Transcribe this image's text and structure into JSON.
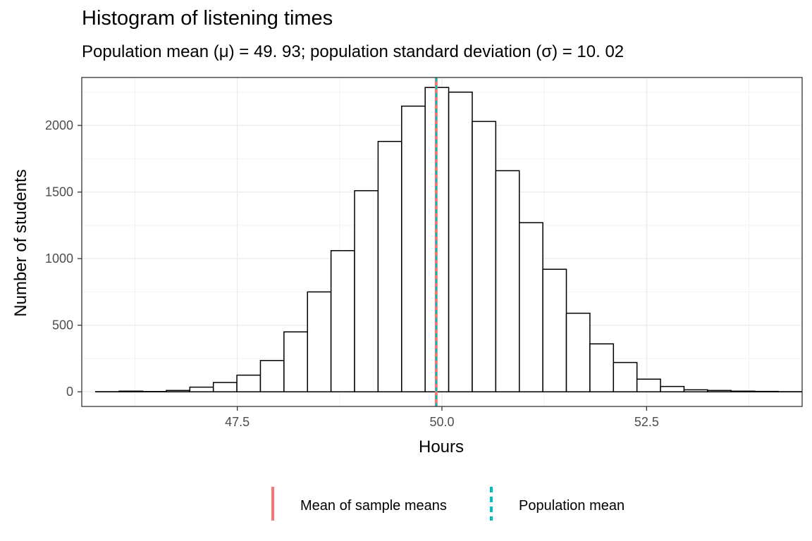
{
  "chart_data": {
    "type": "bar",
    "title": "Histogram of listening times",
    "subtitle": "Population mean (μ) = 49. 93; population standard deviation (σ) = 10. 02",
    "xlabel": "Hours",
    "ylabel": "Number of students",
    "xlim": [
      45.6,
      54.4
    ],
    "ylim": [
      -110,
      2360
    ],
    "xticks": [
      47.5,
      50.0,
      52.5
    ],
    "xtick_labels": [
      "47.5",
      "50.0",
      "52.5"
    ],
    "yticks": [
      0,
      500,
      1000,
      1500,
      2000
    ],
    "ytick_labels": [
      "0",
      "500",
      "1000",
      "1500",
      "2000"
    ],
    "bins": {
      "start": 45.77,
      "width": 0.2875,
      "counts": [
        1,
        5,
        2,
        10,
        35,
        70,
        125,
        235,
        450,
        750,
        1060,
        1510,
        1880,
        2145,
        2285,
        2250,
        2030,
        1660,
        1270,
        920,
        590,
        360,
        220,
        95,
        40,
        15,
        10,
        5,
        3,
        1
      ]
    },
    "vlines": [
      {
        "name": "Mean of sample means",
        "x": 49.93,
        "color": "#F8766D",
        "style": "solid"
      },
      {
        "name": "Population mean",
        "x": 49.93,
        "color": "#00BFC4",
        "style": "dashed"
      }
    ],
    "grid": true,
    "legend_position": "bottom"
  }
}
